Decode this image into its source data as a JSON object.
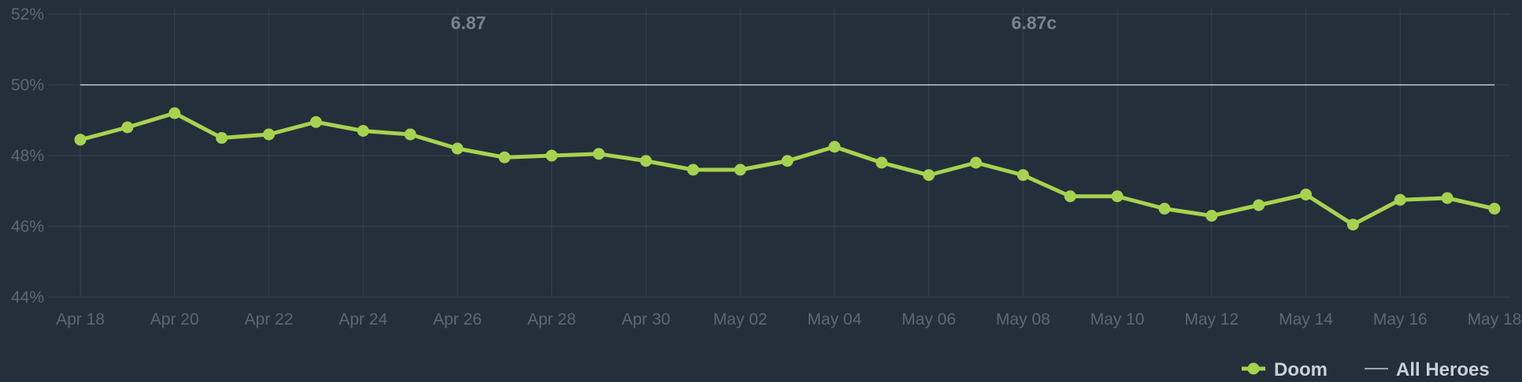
{
  "colors": {
    "background": "#242f3c",
    "grid": "#34404c",
    "doom": "#a6d34f",
    "all_heroes": "#9aa3ab"
  },
  "chart_data": {
    "type": "line",
    "title": "",
    "xlabel": "",
    "ylabel": "",
    "ylim": [
      44,
      52
    ],
    "y_ticks": [
      "44%",
      "46%",
      "48%",
      "50%",
      "52%"
    ],
    "grid": true,
    "legend_position": "bottom-right",
    "x": [
      "Apr 18",
      "Apr 19",
      "Apr 20",
      "Apr 21",
      "Apr 22",
      "Apr 23",
      "Apr 24",
      "Apr 25",
      "Apr 26",
      "Apr 27",
      "Apr 28",
      "Apr 29",
      "Apr 30",
      "May 01",
      "May 02",
      "May 03",
      "May 04",
      "May 05",
      "May 06",
      "May 07",
      "May 08",
      "May 09",
      "May 10",
      "May 11",
      "May 12",
      "May 13",
      "May 14",
      "May 15",
      "May 16",
      "May 17",
      "May 18"
    ],
    "x_tick_labels": [
      "Apr 18",
      "Apr 20",
      "Apr 22",
      "Apr 24",
      "Apr 26",
      "Apr 28",
      "Apr 30",
      "May 02",
      "May 04",
      "May 06",
      "May 08",
      "May 10",
      "May 12",
      "May 14",
      "May 16",
      "May 18"
    ],
    "series": [
      {
        "name": "Doom",
        "values": [
          48.45,
          48.8,
          49.2,
          48.5,
          48.6,
          48.95,
          48.7,
          48.6,
          48.2,
          47.95,
          48.0,
          48.05,
          47.85,
          47.6,
          47.6,
          47.85,
          48.25,
          47.8,
          47.45,
          47.8,
          47.45,
          46.85,
          46.85,
          46.5,
          46.3,
          46.6,
          46.9,
          46.05,
          46.75,
          46.8,
          46.5
        ]
      },
      {
        "name": "All Heroes",
        "values": [
          50,
          50,
          50,
          50,
          50,
          50,
          50,
          50,
          50,
          50,
          50,
          50,
          50,
          50,
          50,
          50,
          50,
          50,
          50,
          50,
          50,
          50,
          50,
          50,
          50,
          50,
          50,
          50,
          50,
          50,
          50
        ]
      }
    ],
    "annotations": [
      {
        "label": "6.87",
        "x": "Apr 26"
      },
      {
        "label": "6.87c",
        "x": "May 08"
      }
    ]
  }
}
